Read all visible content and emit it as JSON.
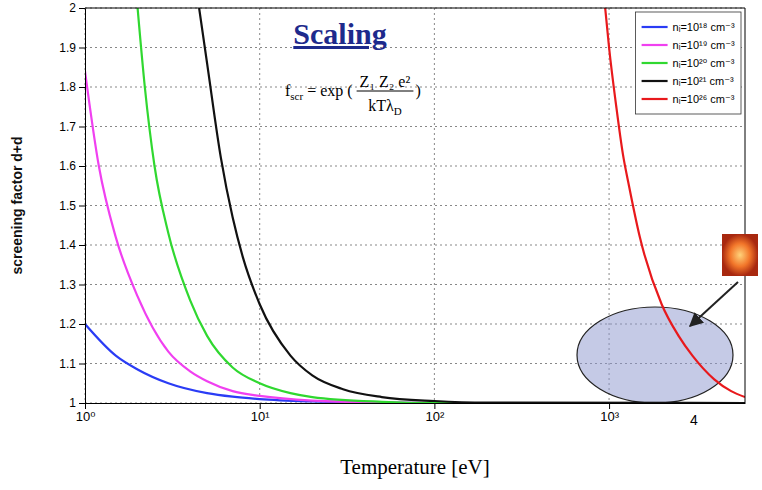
{
  "chart_data": {
    "type": "line",
    "title": "Scaling",
    "x_label": "Temperature [eV]",
    "y_label": "screening factor d+d",
    "formula": {
      "lhs": "f",
      "lhs_subscript": "scr",
      "operator": "= exp (",
      "numerator": "Z₁ Z₂ e²",
      "denominator": "kTλ",
      "denominator_subscript": "D",
      "close": ")"
    },
    "annotations": [
      {
        "text": "4"
      }
    ],
    "log": "x",
    "grid": true,
    "legend": "upper right",
    "xlim": [
      1,
      6000
    ],
    "ylim": [
      1,
      2
    ],
    "xticks": [
      {
        "value": 1,
        "label": "10⁰"
      },
      {
        "value": 10,
        "label": "10¹"
      },
      {
        "value": 100,
        "label": "10²"
      },
      {
        "value": 1000,
        "label": "10³"
      }
    ],
    "yticks": [
      1,
      1.1,
      1.2,
      1.3,
      1.4,
      1.5,
      1.6,
      1.7,
      1.8,
      1.9,
      2
    ],
    "series": [
      {
        "name": "nᵢ=10¹⁸ cm⁻³",
        "color": "#2a3cf5",
        "x": [
          1,
          1.5,
          2,
          3,
          5,
          7,
          10,
          20,
          50,
          100,
          1000,
          6000
        ],
        "values": [
          1.2,
          1.12,
          1.085,
          1.05,
          1.025,
          1.016,
          1.01,
          1.004,
          1.001,
          1,
          1,
          1
        ]
      },
      {
        "name": "nᵢ=10¹⁹ cm⁻³",
        "color": "#f040f0",
        "x": [
          1,
          1.2,
          1.5,
          2,
          3,
          4,
          5,
          7,
          10,
          20,
          50,
          100,
          6000
        ],
        "values": [
          1.84,
          1.6,
          1.42,
          1.27,
          1.13,
          1.08,
          1.055,
          1.03,
          1.018,
          1.006,
          1.001,
          1,
          1
        ]
      },
      {
        "name": "nᵢ=10²⁰ cm⁻³",
        "color": "#30d830",
        "x": [
          2,
          2.2,
          2.5,
          3,
          4,
          5,
          7,
          10,
          15,
          20,
          50,
          100,
          6000
        ],
        "values": [
          2,
          1.8,
          1.6,
          1.43,
          1.26,
          1.17,
          1.09,
          1.05,
          1.025,
          1.015,
          1.003,
          1,
          1
        ]
      },
      {
        "name": "nᵢ=10²¹ cm⁻³",
        "color": "#111111",
        "x": [
          4.5,
          5,
          6,
          7,
          8,
          10,
          15,
          20,
          30,
          50,
          100,
          200,
          6000
        ],
        "values": [
          2,
          1.86,
          1.62,
          1.47,
          1.37,
          1.25,
          1.12,
          1.07,
          1.035,
          1.015,
          1.005,
          1.001,
          1
        ]
      },
      {
        "name": "nᵢ=10²⁶ cm⁻³",
        "color": "#e8191c",
        "x": [
          950,
          1000,
          1100,
          1200,
          1300,
          1500,
          2000,
          2500,
          3000,
          4000,
          5000,
          6000
        ],
        "values": [
          2,
          1.9,
          1.75,
          1.63,
          1.55,
          1.42,
          1.25,
          1.17,
          1.12,
          1.06,
          1.03,
          1.015
        ]
      }
    ]
  }
}
